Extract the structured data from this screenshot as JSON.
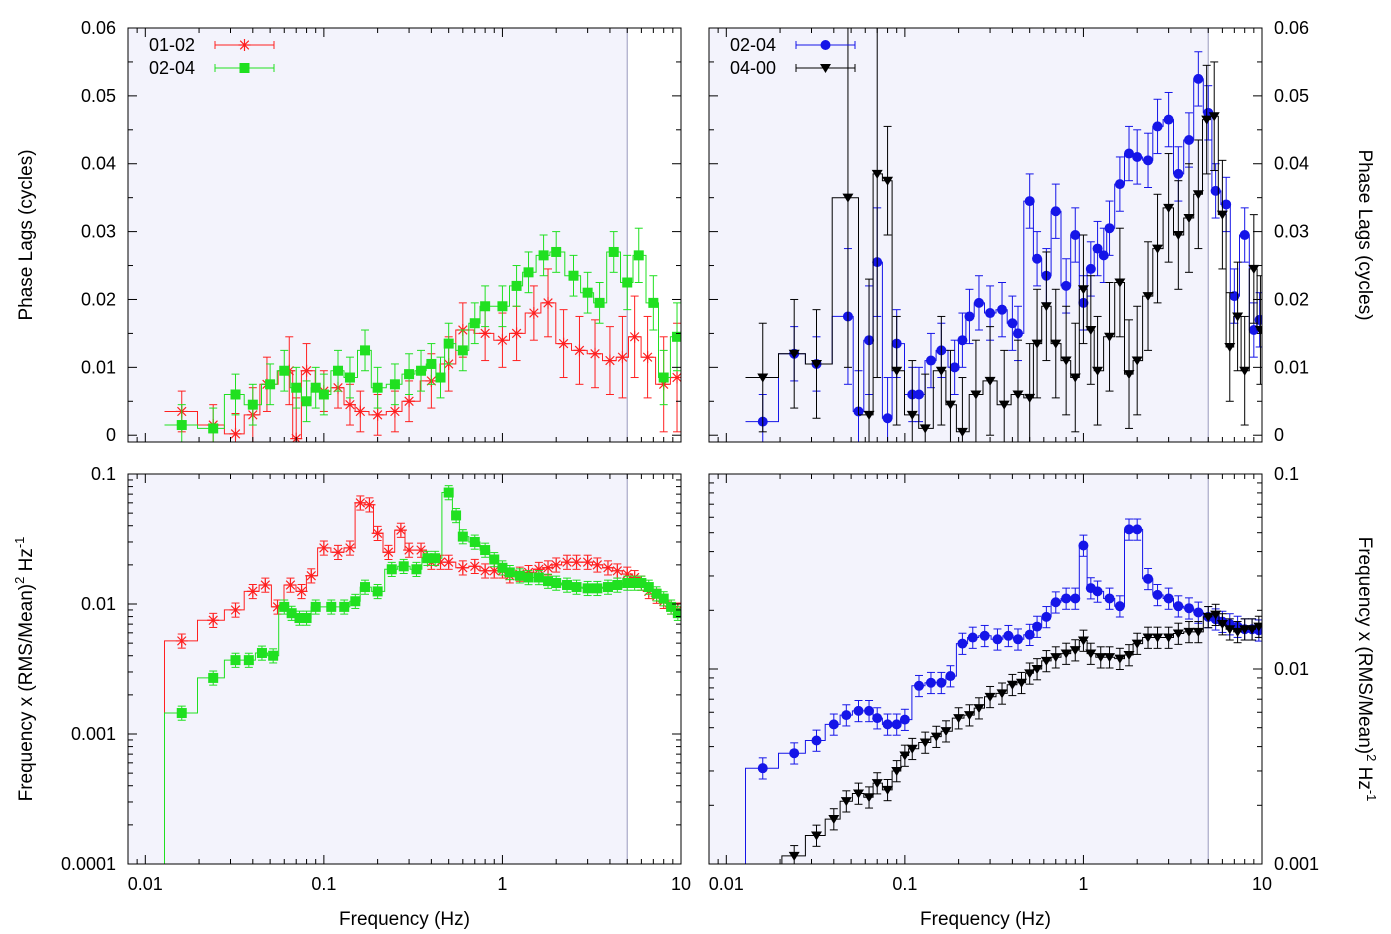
{
  "chart_data": [
    {
      "type": "line",
      "panel": "top-left",
      "xlabel": "",
      "ylabel": "Phase Lags (cycles)",
      "xscale": "log",
      "xlim": [
        0.008,
        10
      ],
      "ylim": [
        -0.001,
        0.06
      ],
      "yticks": [
        "0",
        "0.01",
        "0.02",
        "0.03",
        "0.04",
        "0.05",
        "0.06"
      ],
      "vline_x": 5,
      "legend_position": "top-left",
      "series": [
        {
          "name": "01-02",
          "color": "#ff2020",
          "marker": "asterisk",
          "x": [
            0.016,
            0.024,
            0.032,
            0.04,
            0.048,
            0.064,
            0.07,
            0.08,
            0.1,
            0.12,
            0.14,
            0.16,
            0.2,
            0.25,
            0.3,
            0.4,
            0.5,
            0.6,
            0.8,
            1.0,
            1.2,
            1.5,
            1.8,
            2.2,
            2.7,
            3.3,
            4.0,
            4.7,
            5.5,
            6.5,
            8.0,
            9.5
          ],
          "y": [
            0.0035,
            0.0015,
            0.0002,
            0.003,
            0.0075,
            0.0095,
            -0.0005,
            0.0095,
            0.0065,
            0.007,
            0.0045,
            0.0035,
            0.003,
            0.0035,
            0.005,
            0.008,
            0.0105,
            0.0155,
            0.015,
            0.014,
            0.015,
            0.018,
            0.0195,
            0.0135,
            0.0125,
            0.012,
            0.011,
            0.0115,
            0.0145,
            0.0115,
            0.0075,
            0.0085
          ],
          "err": [
            0.003,
            0.003,
            0.003,
            0.004,
            0.004,
            0.005,
            0.006,
            0.004,
            0.003,
            0.003,
            0.003,
            0.003,
            0.003,
            0.003,
            0.003,
            0.004,
            0.004,
            0.004,
            0.004,
            0.004,
            0.004,
            0.004,
            0.005,
            0.005,
            0.005,
            0.005,
            0.005,
            0.006,
            0.006,
            0.006,
            0.007,
            0.008
          ]
        },
        {
          "name": "02-04",
          "color": "#20e020",
          "marker": "square",
          "x": [
            0.016,
            0.024,
            0.032,
            0.04,
            0.05,
            0.06,
            0.07,
            0.08,
            0.09,
            0.1,
            0.12,
            0.14,
            0.17,
            0.2,
            0.25,
            0.3,
            0.35,
            0.4,
            0.45,
            0.5,
            0.6,
            0.7,
            0.8,
            1.0,
            1.2,
            1.4,
            1.7,
            2.0,
            2.5,
            3.0,
            3.5,
            4.2,
            5.0,
            5.8,
            7.0,
            8.0,
            9.5
          ],
          "y": [
            0.0015,
            0.001,
            0.006,
            0.0045,
            0.0075,
            0.0095,
            0.007,
            0.005,
            0.007,
            0.006,
            0.0095,
            0.0085,
            0.0125,
            0.007,
            0.0075,
            0.009,
            0.0095,
            0.0105,
            0.0085,
            0.0135,
            0.0125,
            0.0165,
            0.019,
            0.019,
            0.022,
            0.024,
            0.0265,
            0.027,
            0.0235,
            0.021,
            0.0195,
            0.027,
            0.0225,
            0.0265,
            0.0195,
            0.0085,
            0.0145
          ],
          "err": [
            0.003,
            0.003,
            0.003,
            0.003,
            0.003,
            0.003,
            0.003,
            0.003,
            0.003,
            0.003,
            0.003,
            0.003,
            0.003,
            0.003,
            0.003,
            0.003,
            0.003,
            0.003,
            0.003,
            0.003,
            0.003,
            0.003,
            0.003,
            0.003,
            0.003,
            0.003,
            0.003,
            0.003,
            0.003,
            0.003,
            0.003,
            0.003,
            0.004,
            0.004,
            0.004,
            0.004,
            0.005
          ]
        }
      ]
    },
    {
      "type": "line",
      "panel": "top-right",
      "xlabel": "",
      "ylabel": "Phase Lags (cycles)",
      "ylabel_side": "right",
      "xscale": "log",
      "xlim": [
        0.008,
        10
      ],
      "ylim": [
        -0.001,
        0.06
      ],
      "yticks": [
        "0",
        "0.01",
        "0.02",
        "0.03",
        "0.04",
        "0.05",
        "0.06"
      ],
      "vline_x": 5,
      "legend_position": "top-left",
      "series": [
        {
          "name": "02-04",
          "color": "#1515e8",
          "marker": "circle",
          "x": [
            0.016,
            0.024,
            0.032,
            0.048,
            0.055,
            0.063,
            0.07,
            0.08,
            0.09,
            0.11,
            0.12,
            0.14,
            0.16,
            0.19,
            0.21,
            0.23,
            0.26,
            0.3,
            0.35,
            0.4,
            0.43,
            0.5,
            0.55,
            0.62,
            0.7,
            0.8,
            0.9,
            1.0,
            1.1,
            1.2,
            1.3,
            1.4,
            1.6,
            1.8,
            2.0,
            2.3,
            2.6,
            3.0,
            3.4,
            3.9,
            4.4,
            5.0,
            5.5,
            6.3,
            7.0,
            8.0,
            9.0,
            9.7
          ],
          "y": [
            0.002,
            0.012,
            0.0105,
            0.0175,
            0.0035,
            0.014,
            0.0255,
            0.0025,
            0.0135,
            0.006,
            0.006,
            0.011,
            0.0125,
            0.01,
            0.014,
            0.0175,
            0.0195,
            0.018,
            0.0185,
            0.0165,
            0.015,
            0.0345,
            0.026,
            0.0235,
            0.033,
            0.022,
            0.0295,
            0.0195,
            0.0245,
            0.0275,
            0.0265,
            0.0305,
            0.037,
            0.0415,
            0.041,
            0.0405,
            0.0455,
            0.0465,
            0.0385,
            0.0435,
            0.0525,
            0.0475,
            0.036,
            0.034,
            0.0205,
            0.0295,
            0.0155,
            0.017
          ],
          "err": [
            0.004,
            0.004,
            0.004,
            0.01,
            0.006,
            0.008,
            0.008,
            0.006,
            0.005,
            0.004,
            0.004,
            0.004,
            0.004,
            0.004,
            0.004,
            0.004,
            0.004,
            0.004,
            0.004,
            0.004,
            0.004,
            0.004,
            0.004,
            0.004,
            0.004,
            0.004,
            0.004,
            0.004,
            0.004,
            0.004,
            0.004,
            0.004,
            0.004,
            0.004,
            0.004,
            0.004,
            0.004,
            0.004,
            0.004,
            0.004,
            0.004,
            0.004,
            0.004,
            0.004,
            0.004,
            0.004,
            0.004,
            0.004
          ]
        },
        {
          "name": "04-00",
          "color": "#000000",
          "marker": "triangle-down",
          "x": [
            0.016,
            0.024,
            0.032,
            0.048,
            0.063,
            0.07,
            0.08,
            0.09,
            0.11,
            0.13,
            0.16,
            0.18,
            0.21,
            0.25,
            0.3,
            0.36,
            0.43,
            0.5,
            0.55,
            0.62,
            0.7,
            0.8,
            0.9,
            1.0,
            1.1,
            1.2,
            1.4,
            1.6,
            1.8,
            2.0,
            2.3,
            2.6,
            3.0,
            3.4,
            3.9,
            4.4,
            4.9,
            5.4,
            6.0,
            6.6,
            7.3,
            8.0,
            9.0,
            9.8
          ],
          "y": [
            0.0085,
            0.012,
            0.0105,
            0.035,
            0.003,
            0.0385,
            0.0375,
            0.0095,
            0.003,
            0.001,
            0.0095,
            0.0045,
            0.0005,
            0.006,
            0.008,
            0.0045,
            0.006,
            0.0055,
            0.0135,
            0.019,
            0.0135,
            0.011,
            0.0085,
            0.0215,
            0.0155,
            0.0095,
            0.0145,
            0.0225,
            0.009,
            0.011,
            0.0205,
            0.0275,
            0.0335,
            0.0295,
            0.032,
            0.0355,
            0.0465,
            0.047,
            0.0325,
            0.013,
            0.0175,
            0.0095,
            0.0245,
            0.0155
          ],
          "err": [
            0.008,
            0.008,
            0.008,
            0.025,
            0.02,
            0.03,
            0.008,
            0.008,
            0.008,
            0.008,
            0.008,
            0.008,
            0.008,
            0.008,
            0.008,
            0.008,
            0.008,
            0.008,
            0.008,
            0.008,
            0.008,
            0.008,
            0.008,
            0.008,
            0.008,
            0.008,
            0.008,
            0.008,
            0.008,
            0.008,
            0.008,
            0.008,
            0.008,
            0.008,
            0.008,
            0.008,
            0.008,
            0.008,
            0.008,
            0.008,
            0.008,
            0.008,
            0.008,
            0.008
          ]
        }
      ]
    },
    {
      "type": "line",
      "panel": "bottom-left",
      "xlabel": "Frequency (Hz)",
      "ylabel_text": "Frequency x (RMS/Mean)",
      "ylabel_sup": "2",
      "ylabel_unit": "Hz",
      "ylabel_unit_sup": "-1",
      "xscale": "log",
      "yscale": "log",
      "xlim": [
        0.008,
        10
      ],
      "ylim": [
        0.0001,
        0.1
      ],
      "xticks": [
        "0.01",
        "0.1",
        "1",
        "10"
      ],
      "yticks": [
        "0.0001",
        "0.001",
        "0.01",
        "0.1"
      ],
      "vline_x": 5,
      "series": [
        {
          "name": "01-02",
          "color": "#ff2020",
          "marker": "asterisk",
          "x": [
            0.016,
            0.024,
            0.032,
            0.04,
            0.047,
            0.055,
            0.065,
            0.075,
            0.085,
            0.1,
            0.12,
            0.14,
            0.16,
            0.18,
            0.2,
            0.23,
            0.27,
            0.3,
            0.35,
            0.4,
            0.45,
            0.5,
            0.6,
            0.7,
            0.8,
            0.9,
            1.0,
            1.1,
            1.25,
            1.4,
            1.6,
            1.8,
            2.0,
            2.3,
            2.6,
            3.0,
            3.4,
            3.9,
            4.4,
            5.0,
            5.5,
            6.0,
            6.6,
            7.3,
            8.0,
            8.8,
            9.6
          ],
          "y": [
            0.0052,
            0.0075,
            0.009,
            0.0125,
            0.014,
            0.0095,
            0.014,
            0.0125,
            0.0165,
            0.027,
            0.025,
            0.027,
            0.06,
            0.058,
            0.035,
            0.025,
            0.037,
            0.026,
            0.026,
            0.021,
            0.021,
            0.021,
            0.019,
            0.0195,
            0.018,
            0.018,
            0.018,
            0.0165,
            0.017,
            0.0175,
            0.0185,
            0.019,
            0.02,
            0.021,
            0.021,
            0.021,
            0.02,
            0.019,
            0.018,
            0.017,
            0.016,
            0.0145,
            0.0125,
            0.0115,
            0.0105,
            0.0095,
            0.009
          ]
        },
        {
          "name": "02-04",
          "color": "#20e020",
          "marker": "square",
          "x": [
            0.016,
            0.024,
            0.032,
            0.038,
            0.045,
            0.052,
            0.06,
            0.066,
            0.073,
            0.08,
            0.09,
            0.11,
            0.13,
            0.15,
            0.17,
            0.2,
            0.24,
            0.28,
            0.33,
            0.38,
            0.42,
            0.5,
            0.55,
            0.6,
            0.7,
            0.8,
            0.9,
            1.0,
            1.1,
            1.25,
            1.4,
            1.6,
            1.8,
            2.0,
            2.3,
            2.6,
            3.0,
            3.4,
            3.9,
            4.4,
            5.0,
            5.5,
            6.0,
            6.6,
            7.3,
            8.0,
            8.8,
            9.6
          ],
          "y": [
            0.00145,
            0.0027,
            0.0037,
            0.0037,
            0.0042,
            0.004,
            0.0095,
            0.0085,
            0.0078,
            0.0078,
            0.0095,
            0.0095,
            0.0095,
            0.0105,
            0.0135,
            0.0125,
            0.0185,
            0.0195,
            0.0185,
            0.0225,
            0.0225,
            0.072,
            0.048,
            0.033,
            0.03,
            0.026,
            0.022,
            0.019,
            0.0175,
            0.0165,
            0.016,
            0.016,
            0.015,
            0.0145,
            0.014,
            0.0135,
            0.0132,
            0.0132,
            0.0135,
            0.014,
            0.0145,
            0.0145,
            0.0145,
            0.0135,
            0.012,
            0.011,
            0.0095,
            0.0085
          ]
        }
      ]
    },
    {
      "type": "line",
      "panel": "bottom-right",
      "xlabel": "Frequency (Hz)",
      "ylabel_text": "Frequency x (RMS/Mean)",
      "ylabel_sup": "2",
      "ylabel_unit": "Hz",
      "ylabel_unit_sup": "-1",
      "ylabel_side": "right",
      "xscale": "log",
      "yscale": "log",
      "xlim": [
        0.008,
        10
      ],
      "ylim": [
        0.001,
        0.1
      ],
      "xticks": [
        "0.01",
        "0.1",
        "1",
        "10"
      ],
      "yticks": [
        "0.001",
        "0.01",
        "0.1"
      ],
      "vline_x": 5,
      "series": [
        {
          "name": "02-04",
          "color": "#1515e8",
          "marker": "circle",
          "x": [
            0.016,
            0.024,
            0.032,
            0.04,
            0.047,
            0.055,
            0.063,
            0.07,
            0.08,
            0.09,
            0.1,
            0.12,
            0.14,
            0.16,
            0.18,
            0.21,
            0.24,
            0.28,
            0.33,
            0.38,
            0.43,
            0.5,
            0.55,
            0.62,
            0.7,
            0.8,
            0.9,
            1.0,
            1.1,
            1.2,
            1.4,
            1.6,
            1.8,
            2.0,
            2.3,
            2.6,
            3.0,
            3.4,
            3.9,
            4.4,
            5.0,
            5.5,
            6.0,
            6.6,
            7.3,
            8.0,
            8.8,
            9.6
          ],
          "y": [
            0.0031,
            0.0037,
            0.0043,
            0.0052,
            0.0058,
            0.0061,
            0.0061,
            0.0056,
            0.0052,
            0.0052,
            0.0055,
            0.0082,
            0.0085,
            0.0085,
            0.0092,
            0.0135,
            0.0145,
            0.0148,
            0.0142,
            0.0148,
            0.0142,
            0.015,
            0.0165,
            0.0185,
            0.022,
            0.023,
            0.023,
            0.043,
            0.026,
            0.025,
            0.023,
            0.021,
            0.052,
            0.052,
            0.029,
            0.024,
            0.023,
            0.021,
            0.0205,
            0.0195,
            0.0185,
            0.018,
            0.0175,
            0.017,
            0.0165,
            0.016,
            0.016,
            0.0158
          ]
        },
        {
          "name": "04-00",
          "color": "#000000",
          "marker": "triangle-down",
          "x": [
            0.024,
            0.032,
            0.04,
            0.047,
            0.055,
            0.063,
            0.07,
            0.08,
            0.09,
            0.1,
            0.11,
            0.13,
            0.15,
            0.17,
            0.2,
            0.23,
            0.26,
            0.3,
            0.35,
            0.4,
            0.45,
            0.5,
            0.55,
            0.62,
            0.7,
            0.8,
            0.9,
            1.0,
            1.1,
            1.25,
            1.4,
            1.6,
            1.8,
            2.0,
            2.3,
            2.6,
            3.0,
            3.4,
            3.9,
            4.4,
            5.0,
            5.5,
            6.0,
            6.6,
            7.3,
            8.0,
            8.8,
            9.6
          ],
          "y": [
            0.0011,
            0.0014,
            0.0017,
            0.0021,
            0.0023,
            0.0022,
            0.0026,
            0.0024,
            0.003,
            0.0036,
            0.0039,
            0.0042,
            0.0045,
            0.0048,
            0.0056,
            0.0058,
            0.0063,
            0.0072,
            0.0075,
            0.0083,
            0.0085,
            0.0095,
            0.01,
            0.011,
            0.0115,
            0.012,
            0.0125,
            0.014,
            0.012,
            0.0115,
            0.0115,
            0.0113,
            0.0118,
            0.0135,
            0.0145,
            0.0145,
            0.0145,
            0.0152,
            0.0155,
            0.0155,
            0.0185,
            0.019,
            0.017,
            0.016,
            0.0155,
            0.016,
            0.016,
            0.0165
          ]
        }
      ]
    }
  ]
}
